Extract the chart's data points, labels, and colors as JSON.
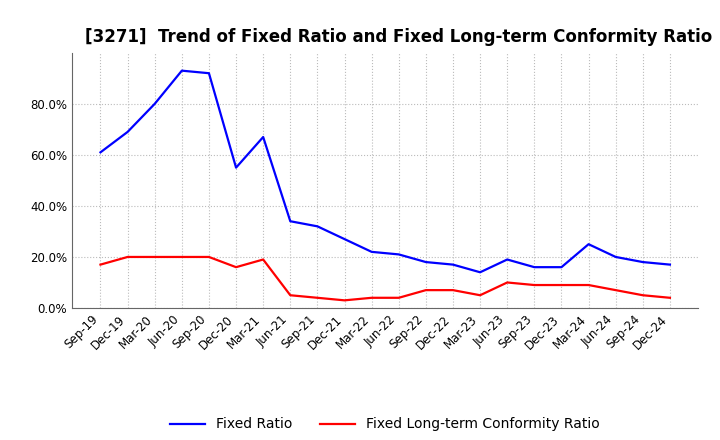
{
  "title": "[3271]  Trend of Fixed Ratio and Fixed Long-term Conformity Ratio",
  "x_labels": [
    "Sep-19",
    "Dec-19",
    "Mar-20",
    "Jun-20",
    "Sep-20",
    "Dec-20",
    "Mar-21",
    "Jun-21",
    "Sep-21",
    "Dec-21",
    "Mar-22",
    "Jun-22",
    "Sep-22",
    "Dec-22",
    "Mar-23",
    "Jun-23",
    "Sep-23",
    "Dec-23",
    "Mar-24",
    "Jun-24",
    "Sep-24",
    "Dec-24"
  ],
  "fixed_ratio": [
    0.61,
    0.69,
    0.8,
    0.93,
    0.92,
    0.55,
    0.67,
    0.34,
    0.32,
    0.27,
    0.22,
    0.21,
    0.18,
    0.17,
    0.14,
    0.19,
    0.16,
    0.16,
    0.25,
    0.2,
    0.18,
    0.17
  ],
  "fixed_lt_ratio": [
    0.17,
    0.2,
    0.2,
    0.2,
    0.2,
    0.16,
    0.19,
    0.05,
    0.04,
    0.03,
    0.04,
    0.04,
    0.07,
    0.07,
    0.05,
    0.1,
    0.09,
    0.09,
    0.09,
    0.07,
    0.05,
    0.04
  ],
  "fixed_ratio_color": "#0000FF",
  "fixed_lt_ratio_color": "#FF0000",
  "bg_color": "#FFFFFF",
  "plot_bg_color": "#FFFFFF",
  "grid_color": "#BBBBBB",
  "ylim": [
    0.0,
    1.0
  ],
  "yticks": [
    0.0,
    0.2,
    0.4,
    0.6,
    0.8
  ],
  "title_fontsize": 12,
  "legend_fontsize": 10,
  "axis_fontsize": 8.5,
  "linewidth": 1.6
}
